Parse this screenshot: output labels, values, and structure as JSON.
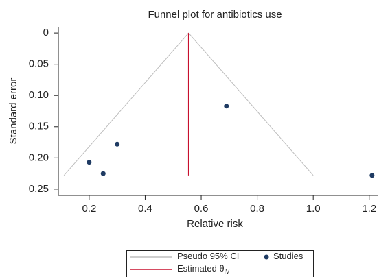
{
  "chart_data": {
    "type": "scatter",
    "title": "Funnel plot for antibiotics use",
    "x_label": "Relative risk",
    "y_label": "Standard error",
    "xlim": [
      0.09,
      1.23
    ],
    "ylim": [
      -0.01,
      0.26
    ],
    "y_inverted": true,
    "xticks": [
      0.2,
      0.4,
      0.6,
      0.8,
      {
        "value": 1.0,
        "label": "1.0"
      },
      1.2
    ],
    "yticks": [
      0,
      0.05,
      {
        "value": 0.1,
        "label": "0.10"
      },
      0.15,
      {
        "value": 0.2,
        "label": "0.20"
      },
      0.25
    ],
    "legend": "bottom",
    "series": [
      {
        "name": "Pseudo 95% CI",
        "kind": "line",
        "color": "#bdbdbd",
        "x": [
          0.11,
          0.555,
          1.0
        ],
        "values": [
          0.228,
          0,
          0.228
        ]
      },
      {
        "name": "Studies",
        "kind": "points",
        "color": "#1f3b63",
        "x": [
          0.69,
          0.3,
          0.2,
          0.25,
          1.21
        ],
        "values": [
          0.117,
          0.178,
          0.207,
          0.225,
          0.228
        ]
      },
      {
        "name": "Estimated θ",
        "name_subscript": "IV",
        "kind": "line",
        "color": "#c8102e",
        "x": [
          0.555,
          0.555
        ],
        "values": [
          0,
          0.228
        ]
      }
    ]
  }
}
